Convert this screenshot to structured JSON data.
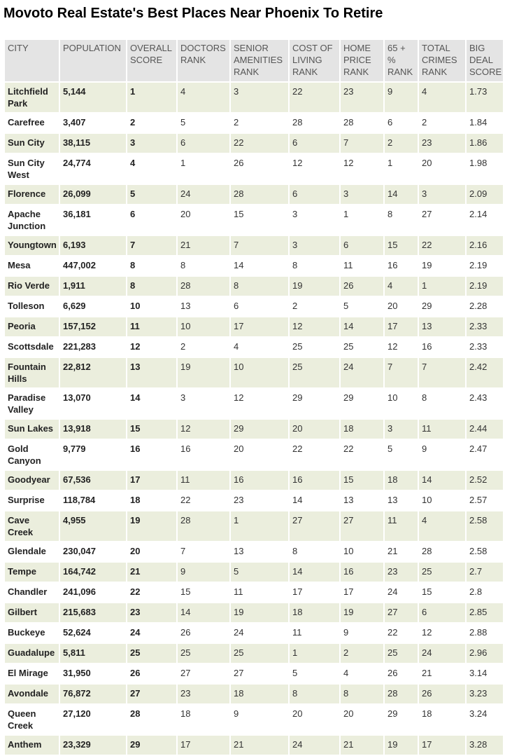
{
  "title": "Movoto Real Estate's Best Places Near Phoenix To Retire",
  "columns": [
    "CITY",
    "POPULATION",
    "OVERALL SCORE",
    "DOCTORS RANK",
    "SENIOR AMENITIES RANK",
    "COST OF LIVING RANK",
    "HOME PRICE RANK",
    "65 + % RANK",
    "TOTAL CRIMES RANK",
    "BIG DEAL SCORE"
  ],
  "rows": [
    [
      "Litchfield Park",
      "5,144",
      "1",
      "4",
      "3",
      "22",
      "23",
      "9",
      "4",
      "1.73"
    ],
    [
      "Carefree",
      "3,407",
      "2",
      "5",
      "2",
      "28",
      "28",
      "6",
      "2",
      "1.84"
    ],
    [
      "Sun City",
      "38,115",
      "3",
      "6",
      "22",
      "6",
      "7",
      "2",
      "23",
      "1.86"
    ],
    [
      "Sun City West",
      "24,774",
      "4",
      "1",
      "26",
      "12",
      "12",
      "1",
      "20",
      "1.98"
    ],
    [
      "Florence",
      "26,099",
      "5",
      "24",
      "28",
      "6",
      "3",
      "14",
      "3",
      "2.09"
    ],
    [
      "Apache Junction",
      "36,181",
      "6",
      "20",
      "15",
      "3",
      "1",
      "8",
      "27",
      "2.14"
    ],
    [
      "Youngtown",
      "6,193",
      "7",
      "21",
      "7",
      "3",
      "6",
      "15",
      "22",
      "2.16"
    ],
    [
      "Mesa",
      "447,002",
      "8",
      "8",
      "14",
      "8",
      "11",
      "16",
      "19",
      "2.19"
    ],
    [
      "Rio Verde",
      "1,911",
      "8",
      "28",
      "8",
      "19",
      "26",
      "4",
      "1",
      "2.19"
    ],
    [
      "Tolleson",
      "6,629",
      "10",
      "13",
      "6",
      "2",
      "5",
      "20",
      "29",
      "2.28"
    ],
    [
      "Peoria",
      "157,152",
      "11",
      "10",
      "17",
      "12",
      "14",
      "17",
      "13",
      "2.33"
    ],
    [
      "Scottsdale",
      "221,283",
      "12",
      "2",
      "4",
      "25",
      "25",
      "12",
      "16",
      "2.33"
    ],
    [
      "Fountain Hills",
      "22,812",
      "13",
      "19",
      "10",
      "25",
      "24",
      "7",
      "7",
      "2.42"
    ],
    [
      "Paradise Valley",
      "13,070",
      "14",
      "3",
      "12",
      "29",
      "29",
      "10",
      "8",
      "2.43"
    ],
    [
      "Sun Lakes",
      "13,918",
      "15",
      "12",
      "29",
      "20",
      "18",
      "3",
      "11",
      "2.44"
    ],
    [
      "Gold Canyon",
      "9,779",
      "16",
      "16",
      "20",
      "22",
      "22",
      "5",
      "9",
      "2.47"
    ],
    [
      "Goodyear",
      "67,536",
      "17",
      "11",
      "16",
      "16",
      "15",
      "18",
      "14",
      "2.52"
    ],
    [
      "Surprise",
      "118,784",
      "18",
      "22",
      "23",
      "14",
      "13",
      "13",
      "10",
      "2.57"
    ],
    [
      "Cave Creek",
      "4,955",
      "19",
      "28",
      "1",
      "27",
      "27",
      "11",
      "4",
      "2.58"
    ],
    [
      "Glendale",
      "230,047",
      "20",
      "7",
      "13",
      "8",
      "10",
      "21",
      "28",
      "2.58"
    ],
    [
      "Tempe",
      "164,742",
      "21",
      "9",
      "5",
      "14",
      "16",
      "23",
      "25",
      "2.7"
    ],
    [
      "Chandler",
      "241,096",
      "22",
      "15",
      "11",
      "17",
      "17",
      "24",
      "15",
      "2.8"
    ],
    [
      "Gilbert",
      "215,683",
      "23",
      "14",
      "19",
      "18",
      "19",
      "27",
      "6",
      "2.85"
    ],
    [
      "Buckeye",
      "52,624",
      "24",
      "26",
      "24",
      "11",
      "9",
      "22",
      "12",
      "2.88"
    ],
    [
      "Guadalupe",
      "5,811",
      "25",
      "25",
      "25",
      "1",
      "2",
      "25",
      "24",
      "2.96"
    ],
    [
      "El Mirage",
      "31,950",
      "26",
      "27",
      "27",
      "5",
      "4",
      "26",
      "21",
      "3.14"
    ],
    [
      "Avondale",
      "76,872",
      "27",
      "23",
      "18",
      "8",
      "8",
      "28",
      "26",
      "3.23"
    ],
    [
      "Queen Creek",
      "27,120",
      "28",
      "18",
      "9",
      "20",
      "20",
      "29",
      "18",
      "3.24"
    ],
    [
      "Anthem",
      "23,329",
      "29",
      "17",
      "21",
      "24",
      "21",
      "19",
      "17",
      "3.28"
    ]
  ]
}
